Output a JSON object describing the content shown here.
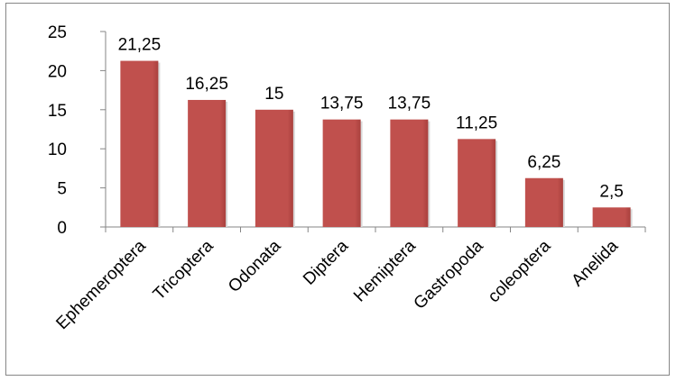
{
  "chart_data": {
    "type": "bar",
    "categories": [
      "Ephemeroptera",
      "Tricoptera",
      "Odonata",
      "Diptera",
      "Hemiptera",
      "Gastropoda",
      "coleoptera",
      "Anelida"
    ],
    "values": [
      21.25,
      16.25,
      15,
      13.75,
      13.75,
      11.25,
      6.25,
      2.5
    ],
    "data_labels": [
      "21,25",
      "16,25",
      "15",
      "13,75",
      "13,75",
      "11,25",
      "6,25",
      "2,5"
    ],
    "yticks": [
      "0",
      "5",
      "10",
      "15",
      "20",
      "25"
    ],
    "ylim": [
      0,
      25
    ],
    "grid": false,
    "legend": "none",
    "bar_color": "#C0504D",
    "title": "",
    "xlabel": "",
    "ylabel": ""
  }
}
